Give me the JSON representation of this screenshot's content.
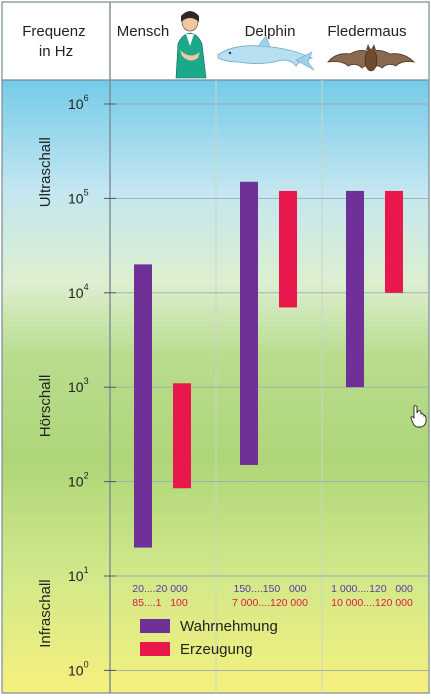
{
  "chart_data": {
    "type": "bar",
    "orientation": "floating-range",
    "scale": "log",
    "y_label": [
      "Frequenz",
      "in Hz"
    ],
    "ylim": [
      1,
      1000000
    ],
    "y_ticks": [
      {
        "base": "10",
        "exp": "0",
        "value": 1
      },
      {
        "base": "10",
        "exp": "1",
        "value": 10
      },
      {
        "base": "10",
        "exp": "2",
        "value": 100
      },
      {
        "base": "10",
        "exp": "3",
        "value": 1000
      },
      {
        "base": "10",
        "exp": "4",
        "value": 10000
      },
      {
        "base": "10",
        "exp": "5",
        "value": 100000
      },
      {
        "base": "10",
        "exp": "6",
        "value": 1000000
      }
    ],
    "regions": [
      {
        "label": "Ultraschall",
        "from": 20000,
        "to": 1800000
      },
      {
        "label": "Hörschall",
        "from": 20,
        "to": 20000
      },
      {
        "label": "Infraschall",
        "from": 0.8,
        "to": 20
      }
    ],
    "categories": [
      "Mensch",
      "Delphin",
      "Fledermaus"
    ],
    "series": [
      {
        "name": "Wahrnehmung",
        "color": "#6f3197",
        "ranges": [
          [
            20,
            20000
          ],
          [
            150,
            150000
          ],
          [
            1000,
            120000
          ]
        ]
      },
      {
        "name": "Erzeugung",
        "color": "#e8174c",
        "ranges": [
          [
            85,
            1100
          ],
          [
            7000,
            120000
          ],
          [
            10000,
            120000
          ]
        ]
      }
    ],
    "range_labels": [
      [
        "20....20 000",
        "150....150   000",
        "1 000....120   000"
      ],
      [
        "85....1   100",
        "7 000....120 000",
        "10 000....120 000"
      ]
    ],
    "legend_position": "bottom"
  },
  "icons": {
    "mensch": "person-icon",
    "delphin": "dolphin-icon",
    "fledermaus": "bat-icon",
    "cursor": "hand-cursor-icon"
  }
}
